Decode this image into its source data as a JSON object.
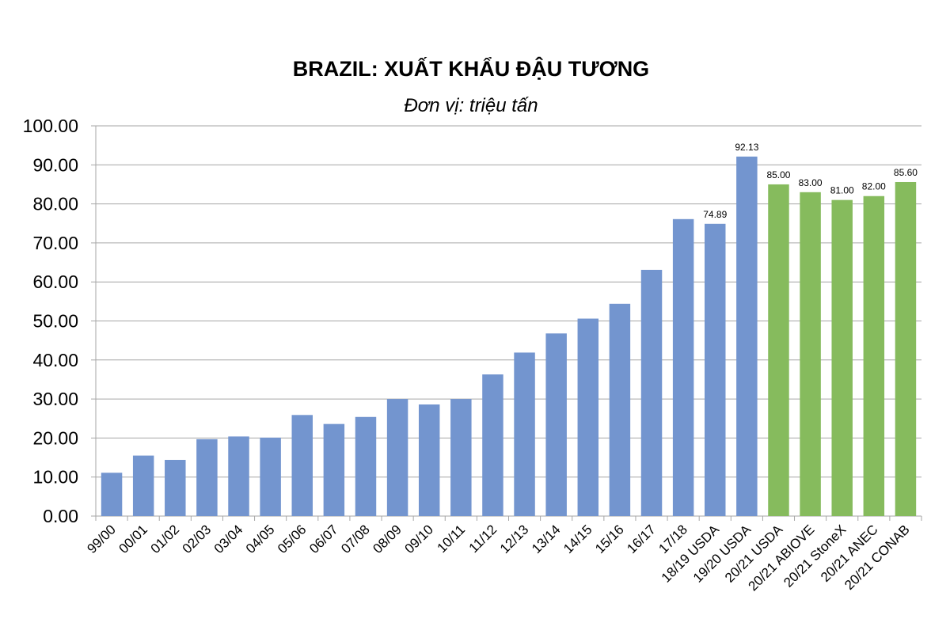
{
  "chart_data": {
    "type": "bar",
    "title": "BRAZIL: XUẤT KHẨU ĐẬU TƯƠNG",
    "subtitle": "Đơn vị: triệu tấn",
    "categories": [
      "99/00",
      "00/01",
      "01/02",
      "02/03",
      "03/04",
      "04/05",
      "05/06",
      "06/07",
      "07/08",
      "08/09",
      "09/10",
      "10/11",
      "11/12",
      "12/13",
      "13/14",
      "14/15",
      "15/16",
      "16/17",
      "17/18",
      "18/19 USDA",
      "19/20 USDA",
      "20/21 USDA",
      "20/21 ABIOVE",
      "20/21 StoneX",
      "20/21 ANEC",
      "20/21 CONAB"
    ],
    "values": [
      11.1,
      15.5,
      14.4,
      19.7,
      20.4,
      20.1,
      25.9,
      23.6,
      25.4,
      30.0,
      28.6,
      30.0,
      36.3,
      41.9,
      46.8,
      50.6,
      54.4,
      63.1,
      76.1,
      74.89,
      92.13,
      85.0,
      83.0,
      81.0,
      82.0,
      85.6
    ],
    "data_labels": [
      null,
      null,
      null,
      null,
      null,
      null,
      null,
      null,
      null,
      null,
      null,
      null,
      null,
      null,
      null,
      null,
      null,
      null,
      null,
      "74.89",
      "92.13",
      "85.00",
      "83.00",
      "81.00",
      "82.00",
      "85.60"
    ],
    "bar_colors": [
      "#7395cf",
      "#7395cf",
      "#7395cf",
      "#7395cf",
      "#7395cf",
      "#7395cf",
      "#7395cf",
      "#7395cf",
      "#7395cf",
      "#7395cf",
      "#7395cf",
      "#7395cf",
      "#7395cf",
      "#7395cf",
      "#7395cf",
      "#7395cf",
      "#7395cf",
      "#7395cf",
      "#7395cf",
      "#7395cf",
      "#7395cf",
      "#86bb5d",
      "#86bb5d",
      "#86bb5d",
      "#86bb5d",
      "#86bb5d"
    ],
    "ylim": [
      0,
      100
    ],
    "yticks": [
      "0.00",
      "10.00",
      "20.00",
      "30.00",
      "40.00",
      "50.00",
      "60.00",
      "70.00",
      "80.00",
      "90.00",
      "100.00"
    ],
    "grid": true,
    "legend": "none"
  }
}
